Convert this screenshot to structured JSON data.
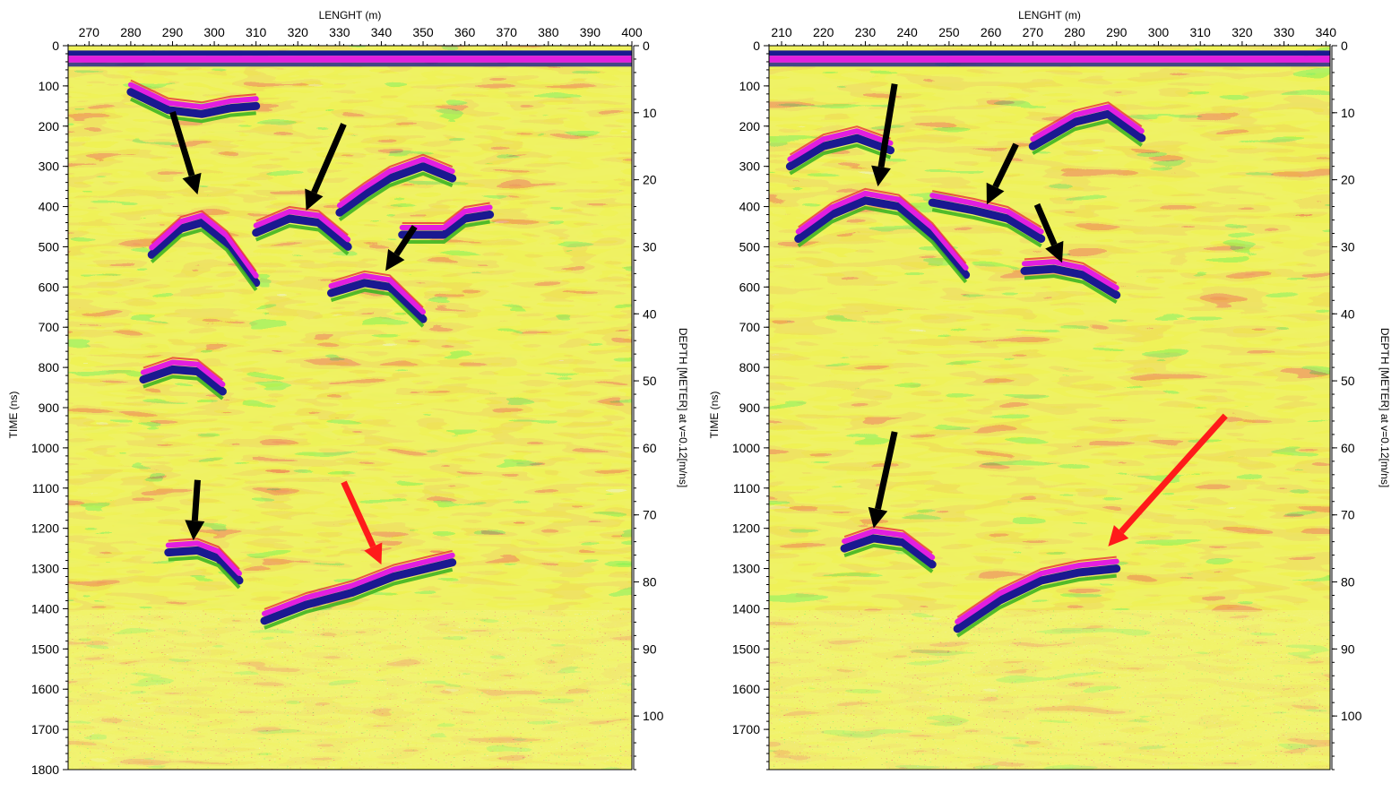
{
  "colors": {
    "background_yellow": "#e8ec3c",
    "green": "#3fb523",
    "magenta": "#e21ee0",
    "navy": "#1a1990",
    "red": "#e8323a",
    "arrow_black": "#000000",
    "arrow_red": "#ff1a1a"
  },
  "chart_data": [
    {
      "type": "heatmap",
      "title": "",
      "xlabel": "LENGHT (m)",
      "ylabel": "TIME (ns)",
      "y2label": "DEPTH [METER] at v=0.12[m/ns]",
      "xlim": [
        265,
        400
      ],
      "ylim": [
        0,
        1800
      ],
      "y2lim": [
        0,
        108
      ],
      "x_ticks": [
        270,
        280,
        290,
        300,
        310,
        320,
        330,
        340,
        350,
        360,
        370,
        380,
        390,
        400
      ],
      "y_ticks": [
        0,
        100,
        200,
        300,
        400,
        500,
        600,
        700,
        800,
        900,
        1000,
        1100,
        1200,
        1300,
        1400,
        1500,
        1600,
        1700,
        1800
      ],
      "y2_ticks": [
        0,
        10,
        20,
        30,
        40,
        50,
        60,
        70,
        80,
        90,
        100
      ],
      "reflectors": [
        {
          "x": [
            280,
            289,
            297,
            304,
            310
          ],
          "y": [
            115,
            160,
            170,
            155,
            150
          ]
        },
        {
          "x": [
            285,
            292,
            297,
            303,
            310
          ],
          "y": [
            520,
            455,
            440,
            490,
            590
          ]
        },
        {
          "x": [
            310,
            318,
            325,
            332
          ],
          "y": [
            465,
            430,
            440,
            500
          ]
        },
        {
          "x": [
            328,
            336,
            342,
            350
          ],
          "y": [
            615,
            590,
            600,
            680
          ]
        },
        {
          "x": [
            283,
            290,
            296,
            302
          ],
          "y": [
            830,
            805,
            810,
            860
          ]
        },
        {
          "x": [
            289,
            296,
            301,
            306
          ],
          "y": [
            1260,
            1255,
            1275,
            1330
          ]
        },
        {
          "x": [
            312,
            322,
            333,
            343,
            357
          ],
          "y": [
            1430,
            1390,
            1360,
            1320,
            1285
          ]
        },
        {
          "x": [
            330,
            336,
            342,
            350,
            357
          ],
          "y": [
            415,
            370,
            330,
            300,
            330
          ]
        },
        {
          "x": [
            345,
            355,
            360,
            366
          ],
          "y": [
            470,
            470,
            430,
            420
          ]
        }
      ],
      "arrows": [
        {
          "color": "black",
          "from": [
            290,
            165
          ],
          "to": [
            296,
            370
          ]
        },
        {
          "color": "black",
          "from": [
            331,
            195
          ],
          "to": [
            322,
            410
          ]
        },
        {
          "color": "black",
          "from": [
            348,
            450
          ],
          "to": [
            341,
            560
          ]
        },
        {
          "color": "black",
          "from": [
            296,
            1080
          ],
          "to": [
            295,
            1230
          ]
        },
        {
          "color": "red",
          "from": [
            331,
            1085
          ],
          "to": [
            340,
            1290
          ]
        }
      ]
    },
    {
      "type": "heatmap",
      "title": "",
      "xlabel": "LENGHT (m)",
      "ylabel": "TIME (ns)",
      "y2label": "DEPTH [METER] at v=0.12[m/ns]",
      "xlim": [
        207,
        341
      ],
      "ylim": [
        0,
        1800
      ],
      "y2lim": [
        0,
        108
      ],
      "x_ticks": [
        210,
        220,
        230,
        240,
        250,
        260,
        270,
        280,
        290,
        300,
        310,
        320,
        330,
        340
      ],
      "y_ticks": [
        0,
        100,
        200,
        300,
        400,
        500,
        600,
        700,
        800,
        900,
        1000,
        1100,
        1200,
        1300,
        1400,
        1500,
        1600,
        1700
      ],
      "y2_ticks": [
        0,
        10,
        20,
        30,
        40,
        50,
        60,
        70,
        80,
        90,
        100
      ],
      "reflectors": [
        {
          "x": [
            214,
            222,
            230,
            238,
            246,
            254
          ],
          "y": [
            480,
            420,
            385,
            400,
            470,
            570
          ]
        },
        {
          "x": [
            246,
            256,
            264,
            272
          ],
          "y": [
            390,
            410,
            430,
            480
          ]
        },
        {
          "x": [
            268,
            275,
            282,
            290
          ],
          "y": [
            560,
            555,
            570,
            620
          ]
        },
        {
          "x": [
            225,
            232,
            239,
            246
          ],
          "y": [
            1250,
            1225,
            1235,
            1290
          ]
        },
        {
          "x": [
            252,
            262,
            272,
            281,
            290
          ],
          "y": [
            1450,
            1380,
            1330,
            1310,
            1300
          ]
        },
        {
          "x": [
            270,
            280,
            288,
            296
          ],
          "y": [
            250,
            190,
            170,
            230
          ]
        },
        {
          "x": [
            212,
            220,
            228,
            236
          ],
          "y": [
            300,
            250,
            230,
            260
          ]
        }
      ],
      "arrows": [
        {
          "color": "black",
          "from": [
            237,
            95
          ],
          "to": [
            233,
            350
          ]
        },
        {
          "color": "black",
          "from": [
            266,
            245
          ],
          "to": [
            259,
            395
          ]
        },
        {
          "color": "black",
          "from": [
            271,
            395
          ],
          "to": [
            277,
            540
          ]
        },
        {
          "color": "black",
          "from": [
            237,
            960
          ],
          "to": [
            232,
            1200
          ]
        },
        {
          "color": "red",
          "from": [
            316,
            920
          ],
          "to": [
            288,
            1245
          ]
        }
      ]
    }
  ]
}
